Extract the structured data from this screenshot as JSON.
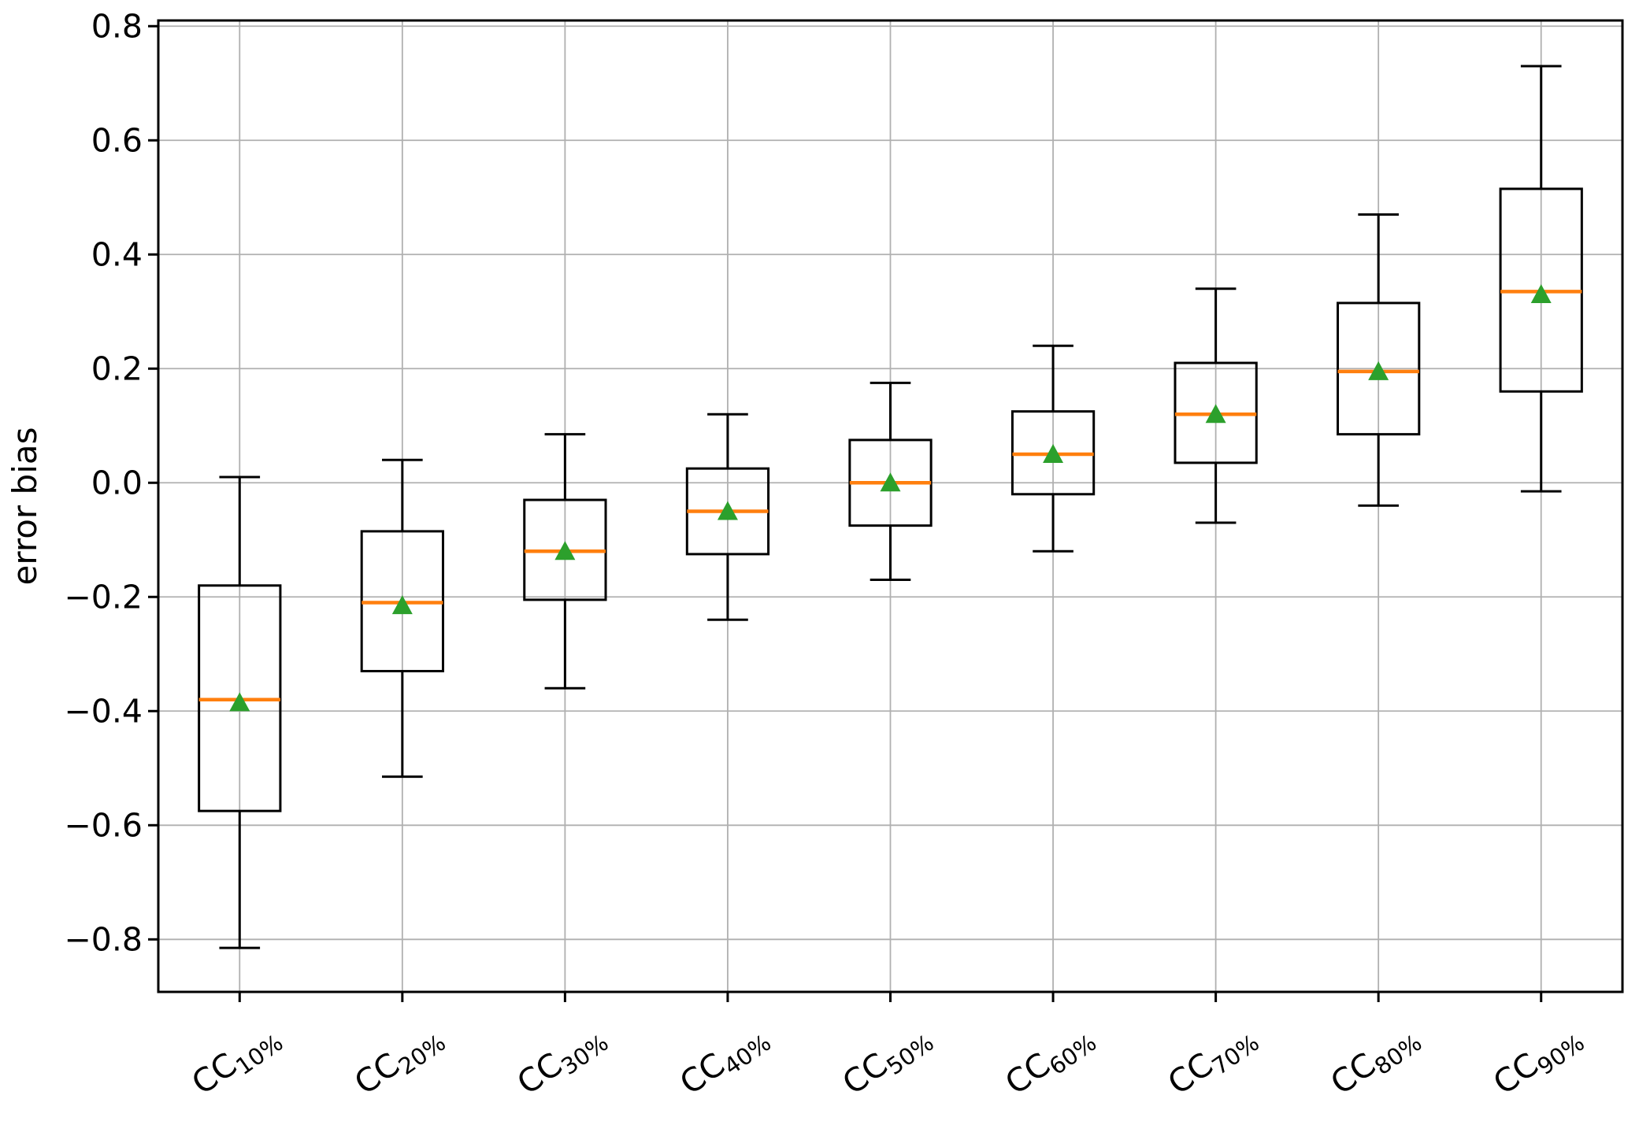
{
  "chart_data": {
    "type": "boxplot",
    "title": "",
    "xlabel": "",
    "ylabel": "error bias",
    "grid": true,
    "legend": null,
    "xlim": [
      0.5,
      9.5
    ],
    "ylim": [
      -0.892,
      0.81
    ],
    "yticks": [
      {
        "value": 0.8,
        "label": "0.8"
      },
      {
        "value": 0.6,
        "label": "0.6"
      },
      {
        "value": 0.4,
        "label": "0.4"
      },
      {
        "value": 0.2,
        "label": "0.2"
      },
      {
        "value": 0.0,
        "label": "0.0"
      },
      {
        "value": -0.2,
        "label": "−0.2"
      },
      {
        "value": -0.4,
        "label": "−0.4"
      },
      {
        "value": -0.6,
        "label": "−0.6"
      },
      {
        "value": -0.8,
        "label": "−0.8"
      }
    ],
    "categories": [
      {
        "base": "CC",
        "sub": "10%",
        "label": "CC10%"
      },
      {
        "base": "CC",
        "sub": "20%",
        "label": "CC20%"
      },
      {
        "base": "CC",
        "sub": "30%",
        "label": "CC30%"
      },
      {
        "base": "CC",
        "sub": "40%",
        "label": "CC40%"
      },
      {
        "base": "CC",
        "sub": "50%",
        "label": "CC50%"
      },
      {
        "base": "CC",
        "sub": "60%",
        "label": "CC60%"
      },
      {
        "base": "CC",
        "sub": "70%",
        "label": "CC70%"
      },
      {
        "base": "CC",
        "sub": "80%",
        "label": "CC80%"
      },
      {
        "base": "CC",
        "sub": "90%",
        "label": "CC90%"
      }
    ],
    "boxes": [
      {
        "label": "CC10%",
        "whislo": -0.815,
        "q1": -0.575,
        "med": -0.38,
        "mean": -0.385,
        "q3": -0.18,
        "whishi": 0.01
      },
      {
        "label": "CC20%",
        "whislo": -0.515,
        "q1": -0.33,
        "med": -0.21,
        "mean": -0.215,
        "q3": -0.085,
        "whishi": 0.04
      },
      {
        "label": "CC30%",
        "whislo": -0.36,
        "q1": -0.205,
        "med": -0.12,
        "mean": -0.12,
        "q3": -0.03,
        "whishi": 0.085
      },
      {
        "label": "CC40%",
        "whislo": -0.24,
        "q1": -0.125,
        "med": -0.05,
        "mean": -0.05,
        "q3": 0.025,
        "whishi": 0.12
      },
      {
        "label": "CC50%",
        "whislo": -0.17,
        "q1": -0.075,
        "med": 0.0,
        "mean": 0.0,
        "q3": 0.075,
        "whishi": 0.175
      },
      {
        "label": "CC60%",
        "whislo": -0.12,
        "q1": -0.02,
        "med": 0.05,
        "mean": 0.05,
        "q3": 0.125,
        "whishi": 0.24
      },
      {
        "label": "CC70%",
        "whislo": -0.07,
        "q1": 0.035,
        "med": 0.12,
        "mean": 0.12,
        "q3": 0.21,
        "whishi": 0.34
      },
      {
        "label": "CC80%",
        "whislo": -0.04,
        "q1": 0.085,
        "med": 0.195,
        "mean": 0.195,
        "q3": 0.315,
        "whishi": 0.47
      },
      {
        "label": "CC90%",
        "whislo": -0.015,
        "q1": 0.16,
        "med": 0.335,
        "mean": 0.33,
        "q3": 0.515,
        "whishi": 0.73
      }
    ],
    "colors": {
      "box_line": "#000000",
      "median": "#ff7f0e",
      "mean_marker": "#2ca02c",
      "grid": "#b0b0b0",
      "frame": "#000000",
      "background": "#ffffff",
      "text": "#000000"
    }
  }
}
